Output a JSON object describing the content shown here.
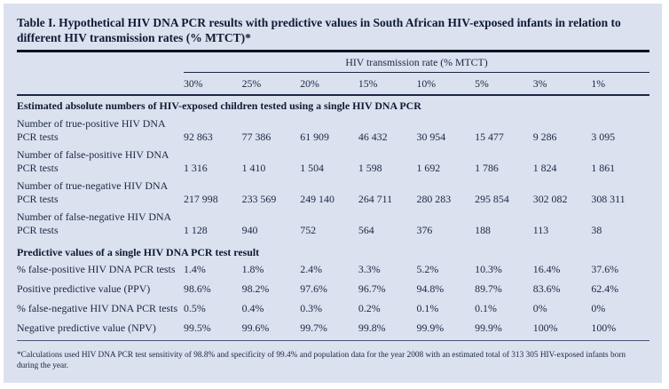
{
  "table": {
    "title": "Table I. Hypothetical HIV DNA PCR results with predictive values in South African HIV-exposed infants in relation to different HIV transmission rates (% MTCT)*",
    "span_header": "HIV transmission rate (% MTCT)",
    "columns": [
      "30%",
      "25%",
      "20%",
      "15%",
      "10%",
      "5%",
      "3%",
      "1%"
    ],
    "sections": [
      {
        "header": "Estimated absolute numbers of HIV-exposed children tested using a single HIV DNA PCR",
        "rows": [
          {
            "label_line1": "Number of true-positive HIV DNA",
            "label_line2": "PCR tests",
            "values": [
              "92 863",
              "77 386",
              "61 909",
              "46 432",
              "30 954",
              "15 477",
              "9 286",
              "3 095"
            ]
          },
          {
            "label_line1": "Number of false-positive HIV DNA",
            "label_line2": "PCR tests",
            "values": [
              "1 316",
              "1 410",
              "1 504",
              "1 598",
              "1 692",
              "1 786",
              "1 824",
              "1 861"
            ]
          },
          {
            "label_line1": "Number of true-negative HIV DNA",
            "label_line2": "PCR tests",
            "values": [
              "217 998",
              "233 569",
              "249 140",
              "264 711",
              "280 283",
              "295 854",
              "302 082",
              "308 311"
            ]
          },
          {
            "label_line1": "Number of false-negative HIV DNA",
            "label_line2": "PCR tests",
            "values": [
              "1 128",
              "940",
              "752",
              "564",
              "376",
              "188",
              "113",
              "38"
            ]
          }
        ]
      },
      {
        "header": "Predictive values of a single HIV DNA PCR test result",
        "rows": [
          {
            "label": "% false-positive HIV DNA PCR tests",
            "values": [
              "1.4%",
              "1.8%",
              "2.4%",
              "3.3%",
              "5.2%",
              "10.3%",
              "16.4%",
              "37.6%"
            ]
          },
          {
            "label": "Positive predictive value (PPV)",
            "values": [
              "98.6%",
              "98.2%",
              "97.6%",
              "96.7%",
              "94.8%",
              "89.7%",
              "83.6%",
              "62.4%"
            ]
          },
          {
            "label": "% false-negative HIV DNA PCR tests",
            "values": [
              "0.5%",
              "0.4%",
              "0.3%",
              "0.2%",
              "0.1%",
              "0.1%",
              "0%",
              "0%"
            ]
          },
          {
            "label": "Negative predictive value (NPV)",
            "values": [
              "99.5%",
              "99.6%",
              "99.7%",
              "99.8%",
              "99.9%",
              "99.9%",
              "100%",
              "100%"
            ]
          }
        ]
      }
    ],
    "footnote": "*Calculations used HIV DNA PCR test sensitivity of 98.8% and specificity of 99.4% and population data for the year 2008 with an estimated total of 313 305 HIV-exposed infants born during the year.",
    "colors": {
      "panel_bg": "#dbe1ef",
      "text": "#1b2642",
      "rule": "#0b111f"
    }
  }
}
